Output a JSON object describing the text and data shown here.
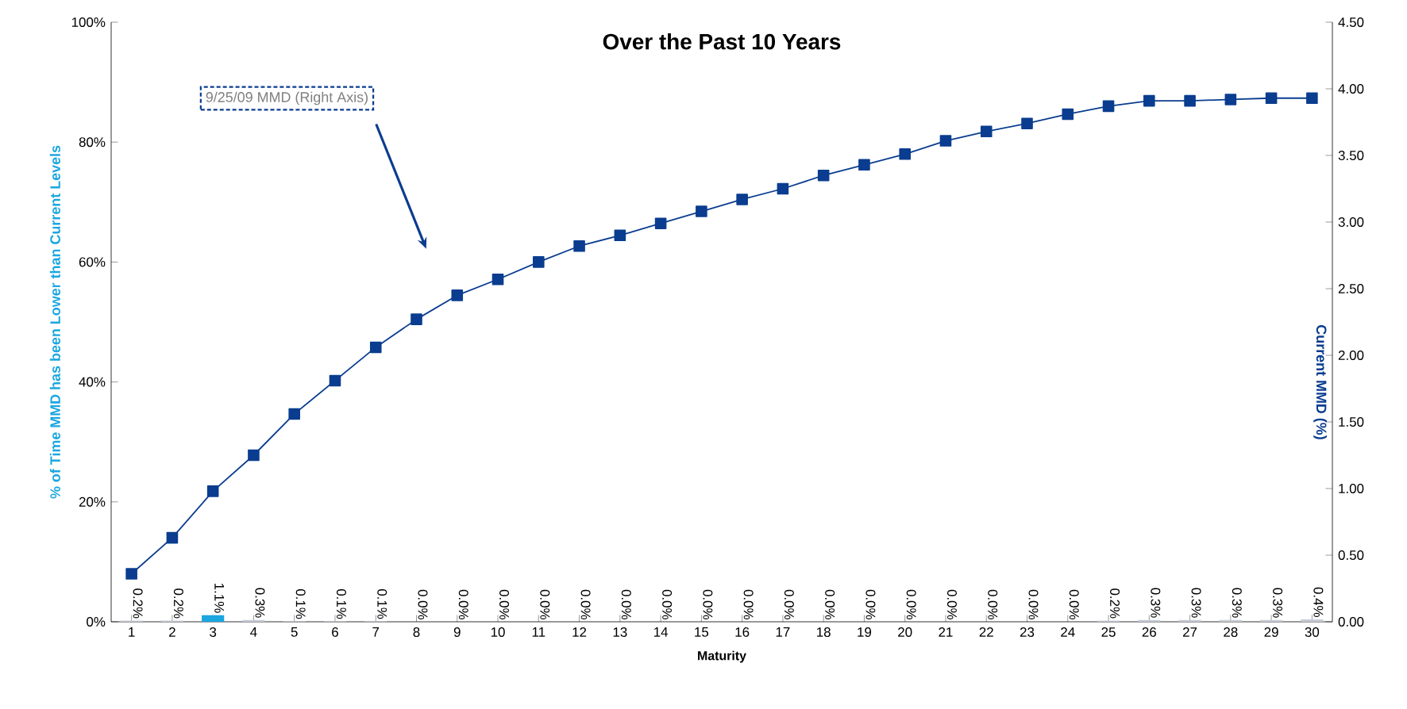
{
  "chart_data": {
    "type": "bar",
    "title": "Over the Past 10 Years",
    "xlabel": "Maturity",
    "ylabel": "% of Time MMD has been Lower than Current Levels",
    "y2label": "Current MMD (%)",
    "categories": [
      "1",
      "2",
      "3",
      "4",
      "5",
      "6",
      "7",
      "8",
      "9",
      "10",
      "11",
      "12",
      "13",
      "14",
      "15",
      "16",
      "17",
      "18",
      "19",
      "20",
      "21",
      "22",
      "23",
      "24",
      "25",
      "26",
      "27",
      "28",
      "29",
      "30"
    ],
    "series": [
      {
        "colors": [
          "#c5ccd6",
          "#c5ccd6",
          "#1aa6e0",
          "#c5ccd6",
          "#c5ccd6",
          "#c5ccd6",
          "#c5ccd6",
          "#c5ccd6",
          "#c5ccd6",
          "#c5ccd6",
          "#c5ccd6",
          "#c5ccd6",
          "#c5ccd6",
          "#c5ccd6",
          "#c5ccd6",
          "#c5ccd6",
          "#c5ccd6",
          "#c5ccd6",
          "#c5ccd6",
          "#c5ccd6",
          "#c5ccd6",
          "#c5ccd6",
          "#c5ccd6",
          "#c5ccd6",
          "#c5ccd6",
          "#c5ccd6",
          "#c5ccd6",
          "#c5ccd6",
          "#c5ccd6",
          "#c5ccd6"
        ],
        "values": [
          0.2,
          0.2,
          1.1,
          0.3,
          0.1,
          0.1,
          0.1,
          0.0,
          0.0,
          0.0,
          0.0,
          0.0,
          0.0,
          0.0,
          0.0,
          0.0,
          0.0,
          0.0,
          0.0,
          0.0,
          0.0,
          0.0,
          0.0,
          0.0,
          0.2,
          0.3,
          0.3,
          0.3,
          0.3,
          0.4
        ],
        "value_labels": [
          "0.2%",
          "0.2%",
          "1.1%",
          "0.3%",
          "0.1%",
          "0.1%",
          "0.1%",
          "0.0%",
          "0.0%",
          "0.0%",
          "0.0%",
          "0.0%",
          "0.0%",
          "0.0%",
          "0.0%",
          "0.0%",
          "0.0%",
          "0.0%",
          "0.0%",
          "0.0%",
          "0.0%",
          "0.0%",
          "0.0%",
          "0.0%",
          "0.2%",
          "0.3%",
          "0.3%",
          "0.3%",
          "0.3%",
          "0.4%"
        ]
      },
      {
        "type": "line",
        "axis": "y2",
        "color": "#0a3d8f",
        "values": [
          0.36,
          0.63,
          0.98,
          1.25,
          1.56,
          1.81,
          2.06,
          2.27,
          2.45,
          2.57,
          2.7,
          2.82,
          2.9,
          2.99,
          3.08,
          3.17,
          3.25,
          3.35,
          3.43,
          3.51,
          3.61,
          3.68,
          3.74,
          3.81,
          3.87,
          3.91,
          3.91,
          3.92,
          3.93,
          3.93
        ]
      }
    ],
    "marker": "square",
    "line_style": "solid",
    "ylim": [
      0,
      100
    ],
    "yticks": [
      {
        "value": 0,
        "label": "0%"
      },
      {
        "value": 20,
        "label": "20%"
      },
      {
        "value": 40,
        "label": "40%"
      },
      {
        "value": 60,
        "label": "60%"
      },
      {
        "value": 80,
        "label": "80%"
      },
      {
        "value": 100,
        "label": "100%"
      }
    ],
    "y2lim": [
      0,
      4.5
    ],
    "y2ticks": [
      {
        "value": 0,
        "label": "0.00"
      },
      {
        "value": 0.5,
        "label": "0.50"
      },
      {
        "value": 1,
        "label": "1.00"
      },
      {
        "value": 1.5,
        "label": "1.50"
      },
      {
        "value": 2,
        "label": "2.00"
      },
      {
        "value": 2.5,
        "label": "2.50"
      },
      {
        "value": 3,
        "label": "3.00"
      },
      {
        "value": 3.5,
        "label": "3.50"
      },
      {
        "value": 4,
        "label": "4.00"
      },
      {
        "value": 4.5,
        "label": "4.50"
      }
    ],
    "annotations": [
      "9/25/09 MMD (Right Axis)"
    ]
  }
}
